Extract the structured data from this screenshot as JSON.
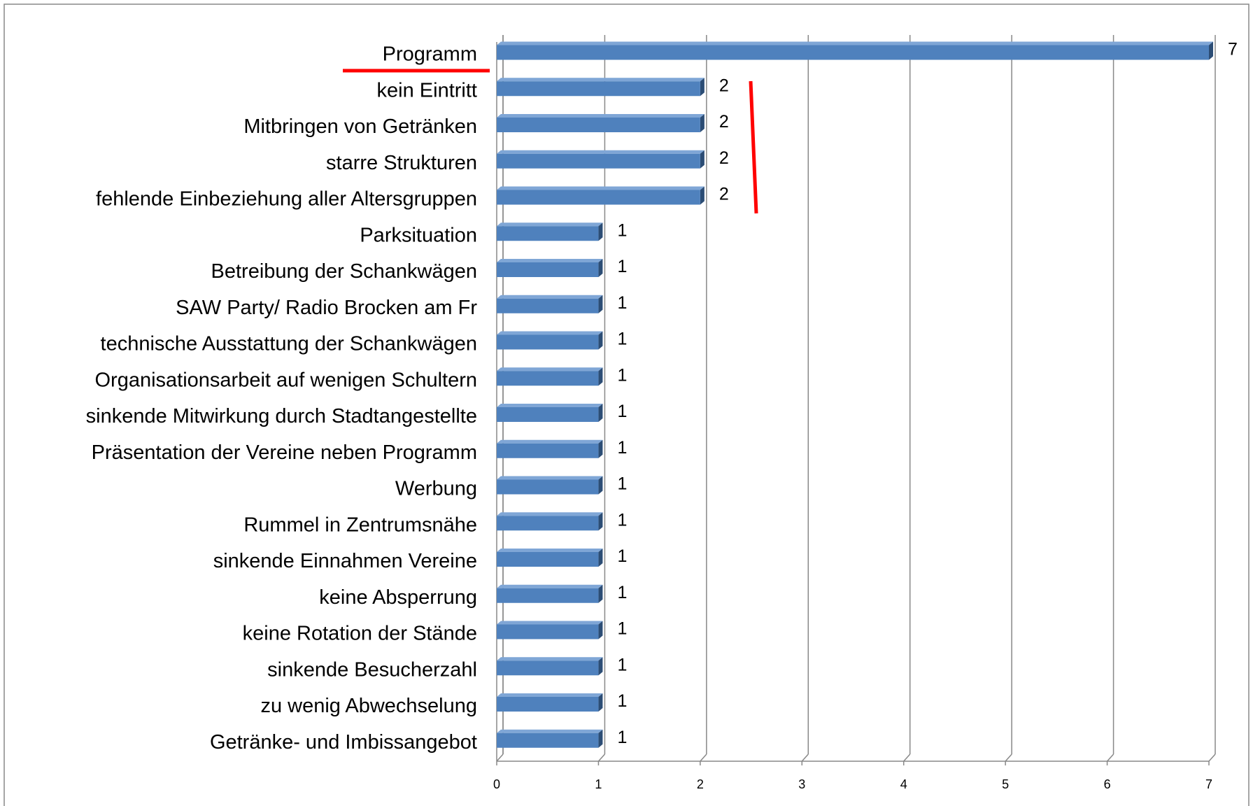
{
  "chart_data": {
    "type": "bar",
    "orientation": "horizontal",
    "categories": [
      "Programm",
      "kein Eintritt",
      "Mitbringen von Getränken",
      "starre Strukturen",
      "fehlende Einbeziehung aller Altersgruppen",
      "Parksituation",
      "Betreibung der Schankwägen",
      "SAW Party/ Radio Brocken am Fr",
      "technische Ausstattung der Schankwägen",
      "Organisationsarbeit auf wenigen Schultern",
      "sinkende Mitwirkung durch Stadtangestellte",
      "Präsentation der Vereine neben Programm",
      "Werbung",
      "Rummel in Zentrumsnähe",
      "sinkende Einnahmen Vereine",
      "keine Absperrung",
      "keine Rotation der Stände",
      "sinkende Besucherzahl",
      "zu wenig Abwechselung",
      "Getränke- und Imbissangebot"
    ],
    "values": [
      7,
      2,
      2,
      2,
      2,
      1,
      1,
      1,
      1,
      1,
      1,
      1,
      1,
      1,
      1,
      1,
      1,
      1,
      1,
      1
    ],
    "color": "#4f81bd",
    "xlim": [
      0,
      7
    ],
    "xticks": [
      0,
      1,
      2,
      3,
      4,
      5,
      6,
      7
    ],
    "grid": true
  }
}
